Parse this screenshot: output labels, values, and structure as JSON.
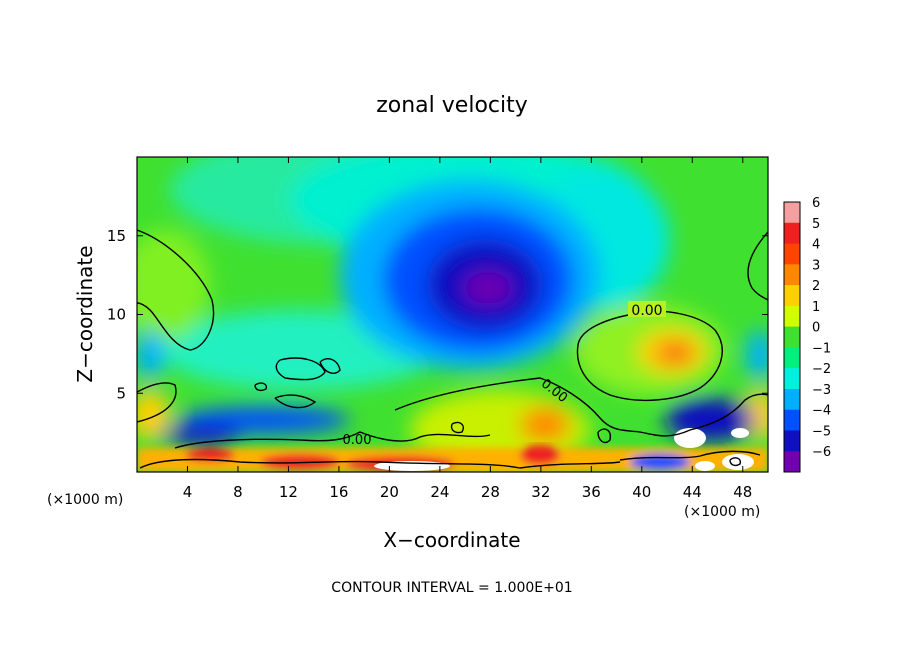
{
  "chart_data": {
    "type": "heatmap",
    "title": "zonal velocity",
    "xlabel": "X−coordinate",
    "ylabel": "Z−coordinate",
    "x_unit_left": "(×1000 m)",
    "x_unit_right": "(×1000 m)",
    "xlim": [
      0,
      50
    ],
    "ylim": [
      0,
      20
    ],
    "xticks": [
      4,
      8,
      12,
      16,
      20,
      24,
      28,
      32,
      36,
      40,
      44,
      48
    ],
    "yticks": [
      5,
      10,
      15
    ],
    "xtick_labels": [
      "4",
      "8",
      "12",
      "16",
      "20",
      "24",
      "28",
      "32",
      "36",
      "40",
      "44",
      "48"
    ],
    "ytick_labels": [
      "5",
      "10",
      "15"
    ],
    "colorbar": {
      "levels": [
        6,
        5,
        4,
        3,
        2,
        1,
        0,
        -1,
        -2,
        -3,
        -4,
        -5,
        -6
      ],
      "labels": [
        "6",
        "5",
        "4",
        "3",
        "2",
        "1",
        "0",
        "−1",
        "−2",
        "−3",
        "−4",
        "−5",
        "−6"
      ],
      "colors": [
        "#f5a0a0",
        "#ee2020",
        "#ff4400",
        "#ff8800",
        "#ffd000",
        "#d0ff00",
        "#40e030",
        "#00f080",
        "#00f0e0",
        "#00b0ff",
        "#0050ff",
        "#1010c0",
        "#7000b0"
      ]
    },
    "contour_labels": [
      "0.00",
      "0.00",
      "0.00"
    ],
    "features": [
      {
        "kind": "min",
        "x": 27,
        "z": 11.5,
        "value": -6
      },
      {
        "kind": "max",
        "x": 43,
        "z": 7.5,
        "value": 4
      },
      {
        "kind": "max",
        "x": 32,
        "z": 2.5,
        "value": 4
      },
      {
        "kind": "min",
        "x": 44,
        "z": 3,
        "value": -4
      }
    ]
  },
  "footer": {
    "contour_interval": "CONTOUR INTERVAL = 1.000E+01"
  }
}
